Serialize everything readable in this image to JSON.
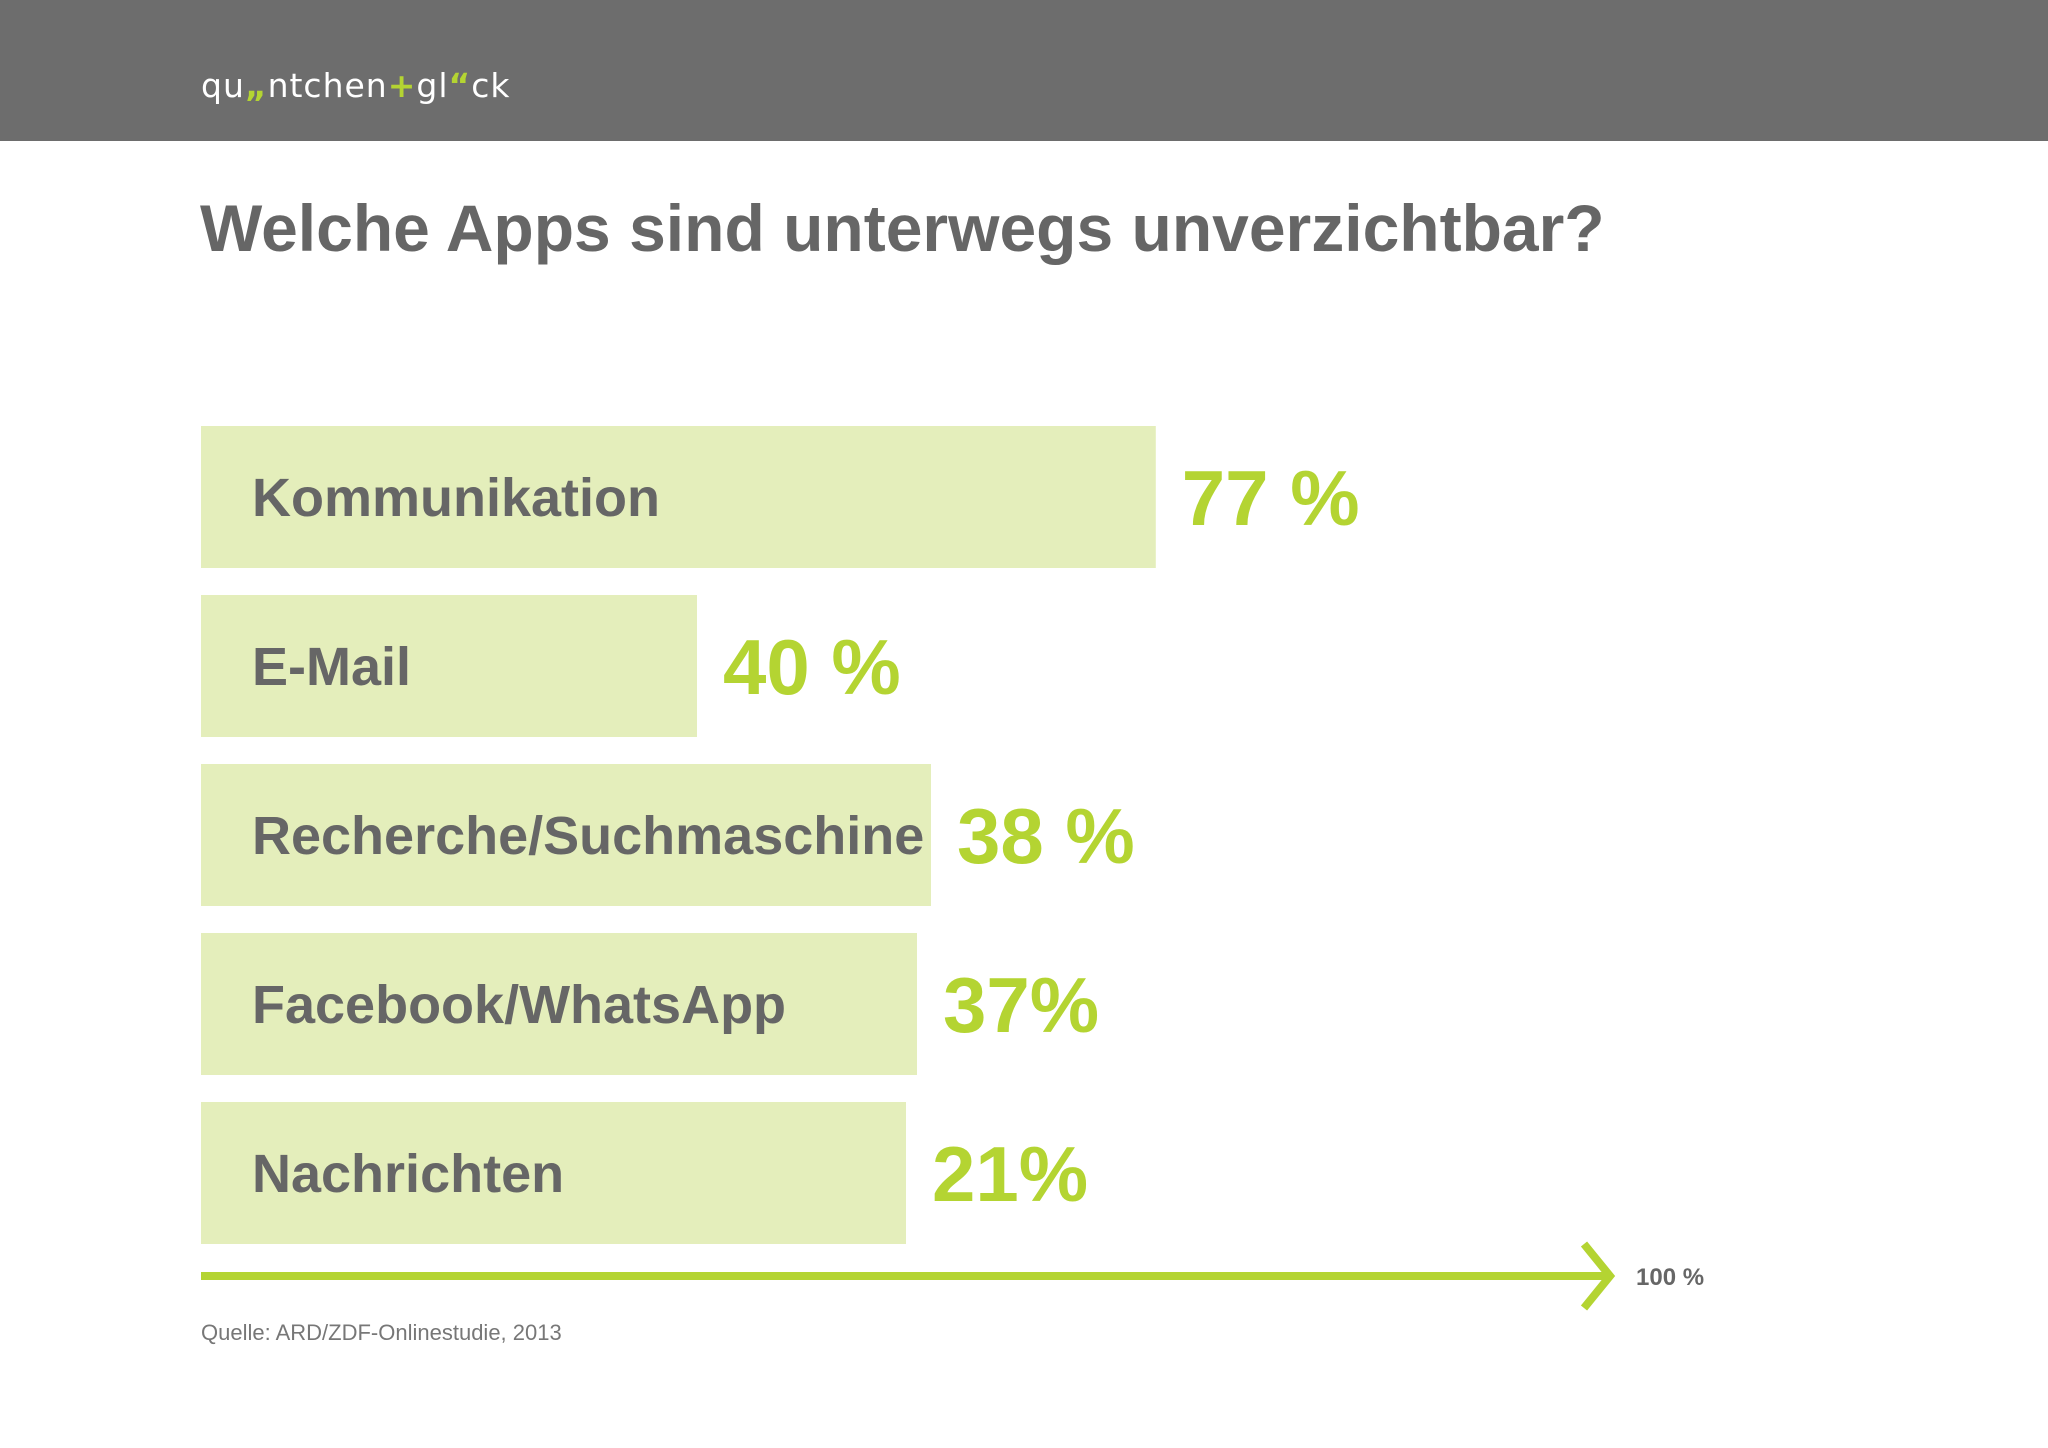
{
  "header": {
    "brand_parts": [
      "qu",
      "„",
      "ntchen",
      "+",
      "gl",
      "“",
      "ck"
    ]
  },
  "title": "Welche Apps sind unterwegs unverzichtbar?",
  "colors": {
    "header_bg": "#6d6d6d",
    "bar_fill": "#e4eebb",
    "accent": "#b4d432",
    "text_gray": "#666666"
  },
  "chart_data": {
    "type": "bar",
    "orientation": "horizontal",
    "categories": [
      "Kommunikation",
      "E-Mail",
      "Recherche/Suchmaschine",
      "Facebook/WhatsApp",
      "Nachrichten"
    ],
    "values": [
      77,
      40,
      38,
      37,
      21
    ],
    "value_labels": [
      "77 %",
      "40 %",
      "38 %",
      "37%",
      "21%"
    ],
    "xlim": [
      0,
      100
    ],
    "axis_end_label": "100 %",
    "unit": "%",
    "grid": false,
    "legend": "none"
  },
  "source": "Quelle: ARD/ZDF-Onlinestudie, 2013"
}
